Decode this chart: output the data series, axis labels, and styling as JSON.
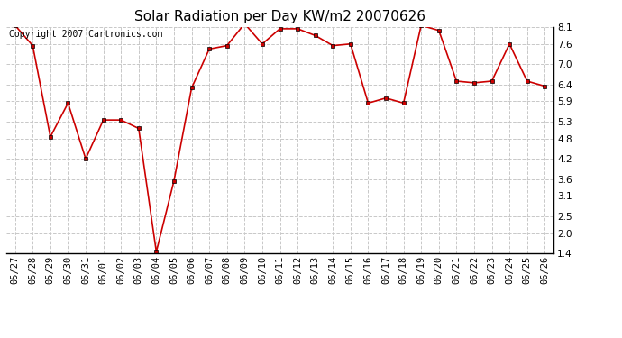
{
  "title": "Solar Radiation per Day KW/m2 20070626",
  "copyright_text": "Copyright 2007 Cartronics.com",
  "dates": [
    "05/27",
    "05/28",
    "05/29",
    "05/30",
    "05/31",
    "06/01",
    "06/02",
    "06/03",
    "06/04",
    "06/05",
    "06/06",
    "06/07",
    "06/08",
    "06/09",
    "06/10",
    "06/11",
    "06/12",
    "06/13",
    "06/14",
    "06/15",
    "06/16",
    "06/17",
    "06/18",
    "06/19",
    "06/20",
    "06/21",
    "06/22",
    "06/23",
    "06/24",
    "06/25",
    "06/26"
  ],
  "values": [
    8.15,
    7.55,
    4.85,
    5.85,
    4.2,
    5.35,
    5.35,
    5.1,
    1.45,
    3.55,
    6.3,
    7.45,
    7.55,
    8.2,
    7.6,
    8.05,
    8.05,
    7.85,
    7.55,
    7.6,
    5.85,
    6.0,
    5.85,
    8.15,
    8.0,
    6.5,
    6.45,
    6.5,
    7.6,
    6.5,
    6.35
  ],
  "line_color": "#cc0000",
  "marker_color": "#cc0000",
  "marker_style": "s",
  "marker_size": 3,
  "background_color": "#ffffff",
  "grid_color": "#c8c8c8",
  "ylim": [
    1.4,
    8.1
  ],
  "yticks": [
    1.4,
    2.0,
    2.5,
    3.1,
    3.6,
    4.2,
    4.8,
    5.3,
    5.9,
    6.4,
    7.0,
    7.6,
    8.1
  ],
  "title_fontsize": 11,
  "copyright_fontsize": 7,
  "tick_fontsize": 7.5
}
